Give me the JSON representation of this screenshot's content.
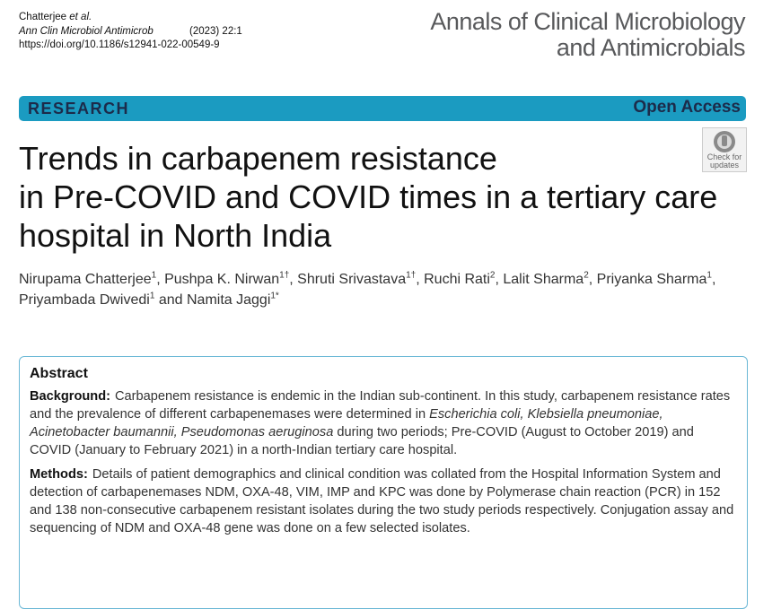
{
  "header": {
    "author": "Chatterjee",
    "author_suffix": "et al.",
    "journal": "Ann Clin Microbiol Antimicrob",
    "issue": "(2023) 22:1",
    "doi": "https://doi.org/10.1186/s12941-022-00549-9"
  },
  "journal_name": [
    "Annals of Clinical Microbiology",
    "and Antimicrobials"
  ],
  "banner": {
    "type": "RESEARCH",
    "access": "Open Access"
  },
  "check_updates": [
    "Check for",
    "updates"
  ],
  "title": [
    "Trends in carbapenem resistance",
    "in Pre-COVID and COVID times in a tertiary care",
    "hospital in North India"
  ],
  "authors": [
    {
      "name": "Nirupama Chatterjee",
      "sup": "1",
      "after": ", "
    },
    {
      "name": "Pushpa K. Nirwan",
      "sup": "1†",
      "after": ", "
    },
    {
      "name": "Shruti Srivastava",
      "sup": "1†",
      "after": ", "
    },
    {
      "name": "Ruchi Rati",
      "sup": "2",
      "after": ", "
    },
    {
      "name": "Lalit Sharma",
      "sup": "2",
      "after": ", "
    },
    {
      "name": "Priyanka Sharma",
      "sup": "1",
      "after": ", "
    },
    {
      "name": "Priyambada Dwivedi",
      "sup": "1",
      "after": " and "
    },
    {
      "name": "Namita Jaggi",
      "sup": "1*"
    }
  ],
  "abstract": {
    "heading": "Abstract",
    "sections": [
      {
        "label": "Background:",
        "runs": [
          {
            "text": "Carbapenem resistance is endemic in the Indian sub-continent. In this study, carbapenem resistance rates and the prevalence of different carbapenemases were determined in "
          },
          {
            "text": "Escherichia coli, Klebsiella pneumoniae, Acinetobacter baumannii, Pseudomonas aeruginosa",
            "italic": true
          },
          {
            "text": " during two periods; Pre-COVID (August to October 2019) and COVID (January to February 2021) in a north-Indian tertiary care hospital."
          }
        ]
      },
      {
        "label": "Methods:",
        "runs": [
          {
            "text": "Details of patient demographics and clinical condition was collated from the Hospital Information System and detection of carbapenemases NDM, OXA-48, VIM, IMP and KPC was done by Polymerase chain reaction (PCR) in 152 and 138 non-consecutive carbapenem resistant isolates during the two study periods respectively. Conjugation assay and sequencing of NDM and OXA-48 gene was done on a few selected isolates."
          }
        ]
      }
    ]
  }
}
